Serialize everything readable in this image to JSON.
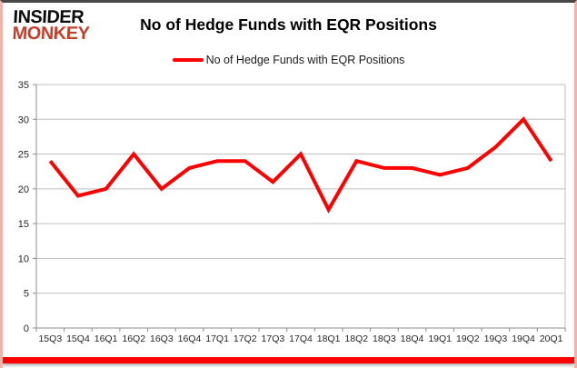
{
  "logo": {
    "line1": "INSIDER",
    "line2": "MONKEY"
  },
  "title": "No of Hedge Funds with EQR Positions",
  "legend": {
    "label": "No of Hedge Funds with EQR Positions"
  },
  "colors": {
    "line": "#ff0000",
    "grid": "#bfbfbf",
    "axis": "#8c8c8c",
    "tick_label": "#262626",
    "logo_accent": "#c5402c",
    "bottom_bar": "#ff0000"
  },
  "chart_data": {
    "type": "line",
    "title": "No of Hedge Funds with EQR Positions",
    "series_name": "No of Hedge Funds with EQR Positions",
    "categories": [
      "15Q3",
      "15Q4",
      "16Q1",
      "16Q2",
      "16Q3",
      "16Q4",
      "17Q1",
      "17Q2",
      "17Q3",
      "17Q4",
      "18Q1",
      "18Q2",
      "18Q3",
      "18Q4",
      "19Q1",
      "19Q2",
      "19Q3",
      "19Q4",
      "20Q1"
    ],
    "values": [
      24,
      19,
      20,
      25,
      20,
      23,
      24,
      24,
      21,
      25,
      17,
      24,
      23,
      23,
      22,
      23,
      26,
      30,
      24
    ],
    "xlabel": "",
    "ylabel": "",
    "ylim": [
      0,
      35
    ],
    "yticks": [
      0,
      5,
      10,
      15,
      20,
      25,
      30,
      35
    ],
    "grid": true,
    "legend_position": "top-center",
    "line_color": "#ff0000",
    "marker": "none"
  }
}
